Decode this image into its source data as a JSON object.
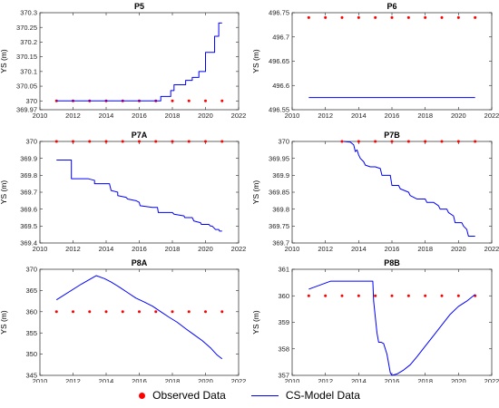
{
  "chart_data": [
    {
      "type": "line",
      "title": "P5",
      "ylabel": "YS (m)",
      "xlim": [
        2010,
        2022
      ],
      "ylim": [
        369.97,
        370.3
      ],
      "xticks": [
        2010,
        2012,
        2014,
        2016,
        2018,
        2020,
        2022
      ],
      "yticks": [
        369.97,
        370,
        370.05,
        370.1,
        370.15,
        370.2,
        370.25,
        370.3
      ],
      "yticklabels": [
        "369.97",
        "370",
        "370.05",
        "370.1",
        "370.15",
        "370.2",
        "370.25",
        "370.3"
      ],
      "series": [
        {
          "name": "Observed Data",
          "kind": "scatter",
          "x": [
            2011,
            2012,
            2013,
            2014,
            2015,
            2016,
            2017,
            2018,
            2019,
            2020,
            2021
          ],
          "y": [
            370,
            370,
            370,
            370,
            370,
            370,
            370,
            370,
            370,
            370,
            370
          ]
        },
        {
          "name": "CS-Model Data",
          "kind": "line",
          "x": [
            2011,
            2017.3,
            2017.3,
            2017.9,
            2017.9,
            2018.1,
            2018.1,
            2018.8,
            2018.8,
            2019.2,
            2019.2,
            2019.6,
            2019.6,
            2020.0,
            2020.0,
            2020.55,
            2020.55,
            2020.8,
            2020.8,
            2021.0
          ],
          "y": [
            370,
            370,
            370.015,
            370.015,
            370.035,
            370.035,
            370.055,
            370.055,
            370.07,
            370.07,
            370.08,
            370.08,
            370.1,
            370.1,
            370.165,
            370.165,
            370.22,
            370.22,
            370.265,
            370.265
          ]
        }
      ]
    },
    {
      "type": "line",
      "title": "P6",
      "ylabel": "YS (m)",
      "xlim": [
        2010,
        2022
      ],
      "ylim": [
        496.55,
        496.75
      ],
      "xticks": [
        2010,
        2012,
        2014,
        2016,
        2018,
        2020,
        2022
      ],
      "yticks": [
        496.55,
        496.6,
        496.65,
        496.7,
        496.75
      ],
      "yticklabels": [
        "496.55",
        "496.6",
        "496.65",
        "496.7",
        "496.75"
      ],
      "series": [
        {
          "name": "Observed Data",
          "kind": "scatter",
          "x": [
            2011,
            2012,
            2013,
            2014,
            2015,
            2016,
            2017,
            2018,
            2019,
            2020,
            2021
          ],
          "y": [
            496.74,
            496.74,
            496.74,
            496.74,
            496.74,
            496.74,
            496.74,
            496.74,
            496.74,
            496.74,
            496.74
          ]
        },
        {
          "name": "CS-Model Data",
          "kind": "line",
          "x": [
            2011,
            2021
          ],
          "y": [
            496.575,
            496.575
          ]
        }
      ]
    },
    {
      "type": "line",
      "title": "P7A",
      "ylabel": "YS (m)",
      "xlim": [
        2010,
        2022
      ],
      "ylim": [
        369.4,
        370
      ],
      "xticks": [
        2010,
        2012,
        2014,
        2016,
        2018,
        2020,
        2022
      ],
      "yticks": [
        369.4,
        369.5,
        369.6,
        369.7,
        369.8,
        369.9,
        370
      ],
      "yticklabels": [
        "369.4",
        "369.5",
        "369.6",
        "369.7",
        "369.8",
        "369.9",
        "370"
      ],
      "series": [
        {
          "name": "Observed Data",
          "kind": "scatter",
          "x": [
            2011,
            2012,
            2013,
            2014,
            2015,
            2016,
            2017,
            2018,
            2019,
            2020,
            2021
          ],
          "y": [
            370,
            370,
            370,
            370,
            370,
            370,
            370,
            370,
            370,
            370,
            370
          ]
        },
        {
          "name": "CS-Model Data",
          "kind": "line",
          "x": [
            2011,
            2011.9,
            2011.9,
            2012.9,
            2013.3,
            2013.3,
            2014.2,
            2014.25,
            2014.3,
            2014.7,
            2014.7,
            2015.2,
            2015.3,
            2015.8,
            2016.0,
            2016.05,
            2016.8,
            2017.1,
            2017.15,
            2018.0,
            2018.1,
            2018.7,
            2018.75,
            2019.2,
            2019.3,
            2019.7,
            2019.75,
            2020.2,
            2020.3,
            2020.4,
            2020.6,
            2020.8,
            2020.85,
            2021.0
          ],
          "y": [
            369.89,
            369.89,
            369.78,
            369.78,
            369.77,
            369.75,
            369.75,
            369.73,
            369.71,
            369.7,
            369.68,
            369.67,
            369.66,
            369.65,
            369.64,
            369.62,
            369.61,
            369.61,
            369.58,
            369.58,
            369.57,
            369.56,
            369.55,
            369.55,
            369.53,
            369.52,
            369.51,
            369.51,
            369.5,
            369.5,
            369.48,
            369.48,
            369.47,
            369.47
          ]
        }
      ]
    },
    {
      "type": "line",
      "title": "P7B",
      "ylabel": "YS (m)",
      "xlim": [
        2010,
        2022
      ],
      "ylim": [
        369.7,
        370
      ],
      "xticks": [
        2010,
        2012,
        2014,
        2016,
        2018,
        2020,
        2022
      ],
      "yticks": [
        369.7,
        369.75,
        369.8,
        369.85,
        369.9,
        369.95,
        370
      ],
      "yticklabels": [
        "369.7",
        "369.75",
        "369.8",
        "369.85",
        "369.9",
        "369.95",
        "370"
      ],
      "series": [
        {
          "name": "Observed Data",
          "kind": "scatter",
          "x": [
            2013,
            2014,
            2015,
            2016,
            2017,
            2018,
            2019,
            2020,
            2021
          ],
          "y": [
            370,
            370,
            370,
            370,
            370,
            370,
            370,
            370,
            370
          ]
        },
        {
          "name": "CS-Model Data",
          "kind": "line",
          "x": [
            2013.1,
            2013.5,
            2013.7,
            2013.8,
            2013.9,
            2014.0,
            2014.1,
            2014.3,
            2014.4,
            2014.7,
            2015.0,
            2015.3,
            2015.4,
            2015.9,
            2016.0,
            2016.4,
            2016.5,
            2017.0,
            2017.1,
            2017.5,
            2018.0,
            2018.1,
            2018.5,
            2018.8,
            2018.9,
            2019.3,
            2019.4,
            2019.7,
            2019.8,
            2020.2,
            2020.3,
            2020.5,
            2020.6,
            2021.0
          ],
          "y": [
            370.0,
            369.998,
            369.99,
            369.97,
            369.975,
            369.96,
            369.95,
            369.94,
            369.93,
            369.925,
            369.925,
            369.92,
            369.9,
            369.9,
            369.87,
            369.87,
            369.86,
            369.85,
            369.84,
            369.83,
            369.83,
            369.82,
            369.82,
            369.81,
            369.8,
            369.8,
            369.79,
            369.78,
            369.76,
            369.76,
            369.75,
            369.74,
            369.72,
            369.72
          ]
        }
      ]
    },
    {
      "type": "line",
      "title": "P8A",
      "ylabel": "YS (m)",
      "xlim": [
        2010,
        2022
      ],
      "ylim": [
        345,
        370
      ],
      "xticks": [
        2010,
        2012,
        2014,
        2016,
        2018,
        2020,
        2022
      ],
      "yticks": [
        345,
        350,
        355,
        360,
        365,
        370
      ],
      "yticklabels": [
        "345",
        "350",
        "355",
        "360",
        "365",
        "370"
      ],
      "series": [
        {
          "name": "Observed Data",
          "kind": "scatter",
          "x": [
            2011,
            2012,
            2013,
            2014,
            2015,
            2016,
            2017,
            2018,
            2019,
            2020,
            2021
          ],
          "y": [
            360,
            360,
            360,
            360,
            360,
            360,
            360,
            360,
            360,
            360,
            360
          ]
        },
        {
          "name": "CS-Model Data",
          "kind": "line",
          "x": [
            2011,
            2012.5,
            2013.4,
            2013.9,
            2014.3,
            2014.8,
            2015.3,
            2015.8,
            2016.3,
            2016.8,
            2017.3,
            2017.8,
            2018.3,
            2018.8,
            2019.3,
            2019.8,
            2020.3,
            2020.7,
            2021.0
          ],
          "y": [
            362.8,
            366.5,
            368.5,
            367.8,
            367.0,
            365.8,
            364.5,
            363.2,
            362.3,
            361.3,
            360.0,
            358.7,
            357.5,
            356.0,
            354.6,
            353.2,
            351.5,
            349.8,
            348.9
          ]
        }
      ]
    },
    {
      "type": "line",
      "title": "P8B",
      "ylabel": "YS (m)",
      "xlim": [
        2010,
        2022
      ],
      "ylim": [
        357,
        361
      ],
      "xticks": [
        2010,
        2012,
        2014,
        2016,
        2018,
        2020,
        2022
      ],
      "yticks": [
        357,
        358,
        359,
        360,
        361
      ],
      "yticklabels": [
        "357",
        "358",
        "359",
        "360",
        "361"
      ],
      "series": [
        {
          "name": "Observed Data",
          "kind": "scatter",
          "x": [
            2011,
            2012,
            2013,
            2014,
            2015,
            2016,
            2017,
            2018,
            2019,
            2020,
            2021
          ],
          "y": [
            360,
            360,
            360,
            360,
            360,
            360,
            360,
            360,
            360,
            360,
            360
          ]
        },
        {
          "name": "CS-Model Data",
          "kind": "line",
          "x": [
            2011,
            2012.3,
            2014.85,
            2014.9,
            2015.0,
            2015.1,
            2015.2,
            2015.35,
            2015.5,
            2015.7,
            2015.9,
            2016.0,
            2016.3,
            2016.7,
            2017.1,
            2017.5,
            2018.0,
            2018.5,
            2019.0,
            2019.5,
            2020.0,
            2020.5,
            2021.0
          ],
          "y": [
            360.25,
            360.55,
            360.55,
            359.8,
            359.2,
            358.6,
            358.25,
            358.25,
            358.2,
            357.8,
            357.1,
            357.0,
            357.05,
            357.2,
            357.4,
            357.7,
            358.1,
            358.5,
            358.9,
            359.3,
            359.6,
            359.8,
            360.05
          ]
        }
      ]
    }
  ],
  "legend": {
    "observed_label": "Observed Data",
    "model_label": "CS-Model Data"
  },
  "colors": {
    "observed": "#ff0000",
    "model": "#0000ff",
    "axis": "#262626"
  }
}
